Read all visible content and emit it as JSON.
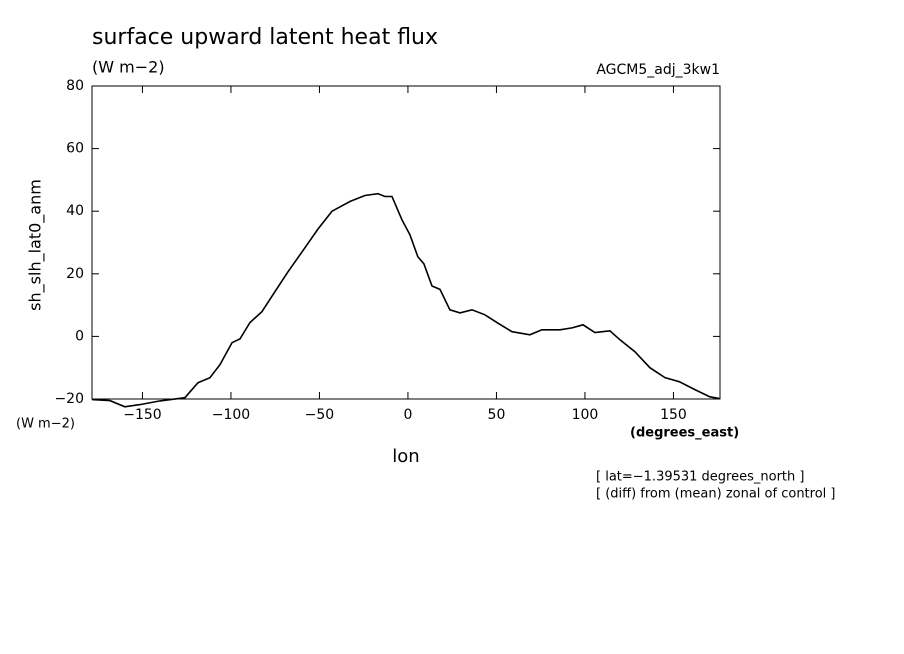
{
  "chart_data": {
    "type": "line",
    "title": "surface upward latent heat flux",
    "subtitle": "(W m−2)",
    "run_label": "AGCM5_adj_3kw1",
    "y_axis_label": "sh_slh_lat0_anm",
    "y_units": "(W m−2)",
    "x_units": "(degrees_east)",
    "x_axis_label": "lon",
    "annotations": [
      "[ lat=−1.39531 degrees_north ]",
      "[ (diff) from (mean) zonal of control ]"
    ],
    "x": [
      -178.5,
      -168.4,
      -159.9,
      -151.4,
      -140.1,
      -126,
      -118.6,
      -111.9,
      -106.2,
      -99.4,
      -94.9,
      -89.3,
      -82.5,
      -75.1,
      -67.8,
      -58.2,
      -50.8,
      -42.9,
      -32.8,
      -24.3,
      -16.9,
      -13,
      -9,
      -3.4,
      1.1,
      5.6,
      9,
      13.6,
      18.1,
      23.7,
      29.4,
      36.2,
      43.5,
      50.3,
      58.8,
      68.9,
      75.7,
      85.9,
      92.7,
      98.9,
      105.6,
      114.1,
      119.8,
      128.2,
      136.7,
      145.2,
      153.4,
      162.1,
      170.6,
      176.3
    ],
    "series": [
      {
        "name": "sh_slh_lat0_anm",
        "color": "#000000",
        "values": [
          -20.2,
          -20.5,
          -22.5,
          -21.8,
          -20.6,
          -19.6,
          -14.8,
          -13.2,
          -9,
          -2,
          -0.8,
          4.4,
          7.9,
          14.3,
          20.6,
          28.3,
          34.3,
          40,
          43.1,
          45,
          45.6,
          44.7,
          44.7,
          37.3,
          32.5,
          25.4,
          23.2,
          16.1,
          15,
          8.5,
          7.5,
          8.5,
          6.9,
          4.4,
          1.5,
          0.5,
          2.1,
          2.1,
          2.7,
          3.7,
          1.2,
          1.8,
          -1.1,
          -4.9,
          -10,
          -13.2,
          -14.5,
          -17,
          -19.3,
          -19.9
        ]
      }
    ],
    "xlim": [
      -178.5,
      176.3
    ],
    "ylim": [
      -20,
      80
    ],
    "xticks": [
      {
        "value": -150,
        "label": "−150"
      },
      {
        "value": -100,
        "label": "−100"
      },
      {
        "value": -50,
        "label": "−50"
      },
      0,
      50,
      100,
      150
    ],
    "yticks": [
      {
        "value": -20,
        "label": "−20"
      },
      0,
      20,
      40,
      60,
      80
    ],
    "grid": false
  }
}
